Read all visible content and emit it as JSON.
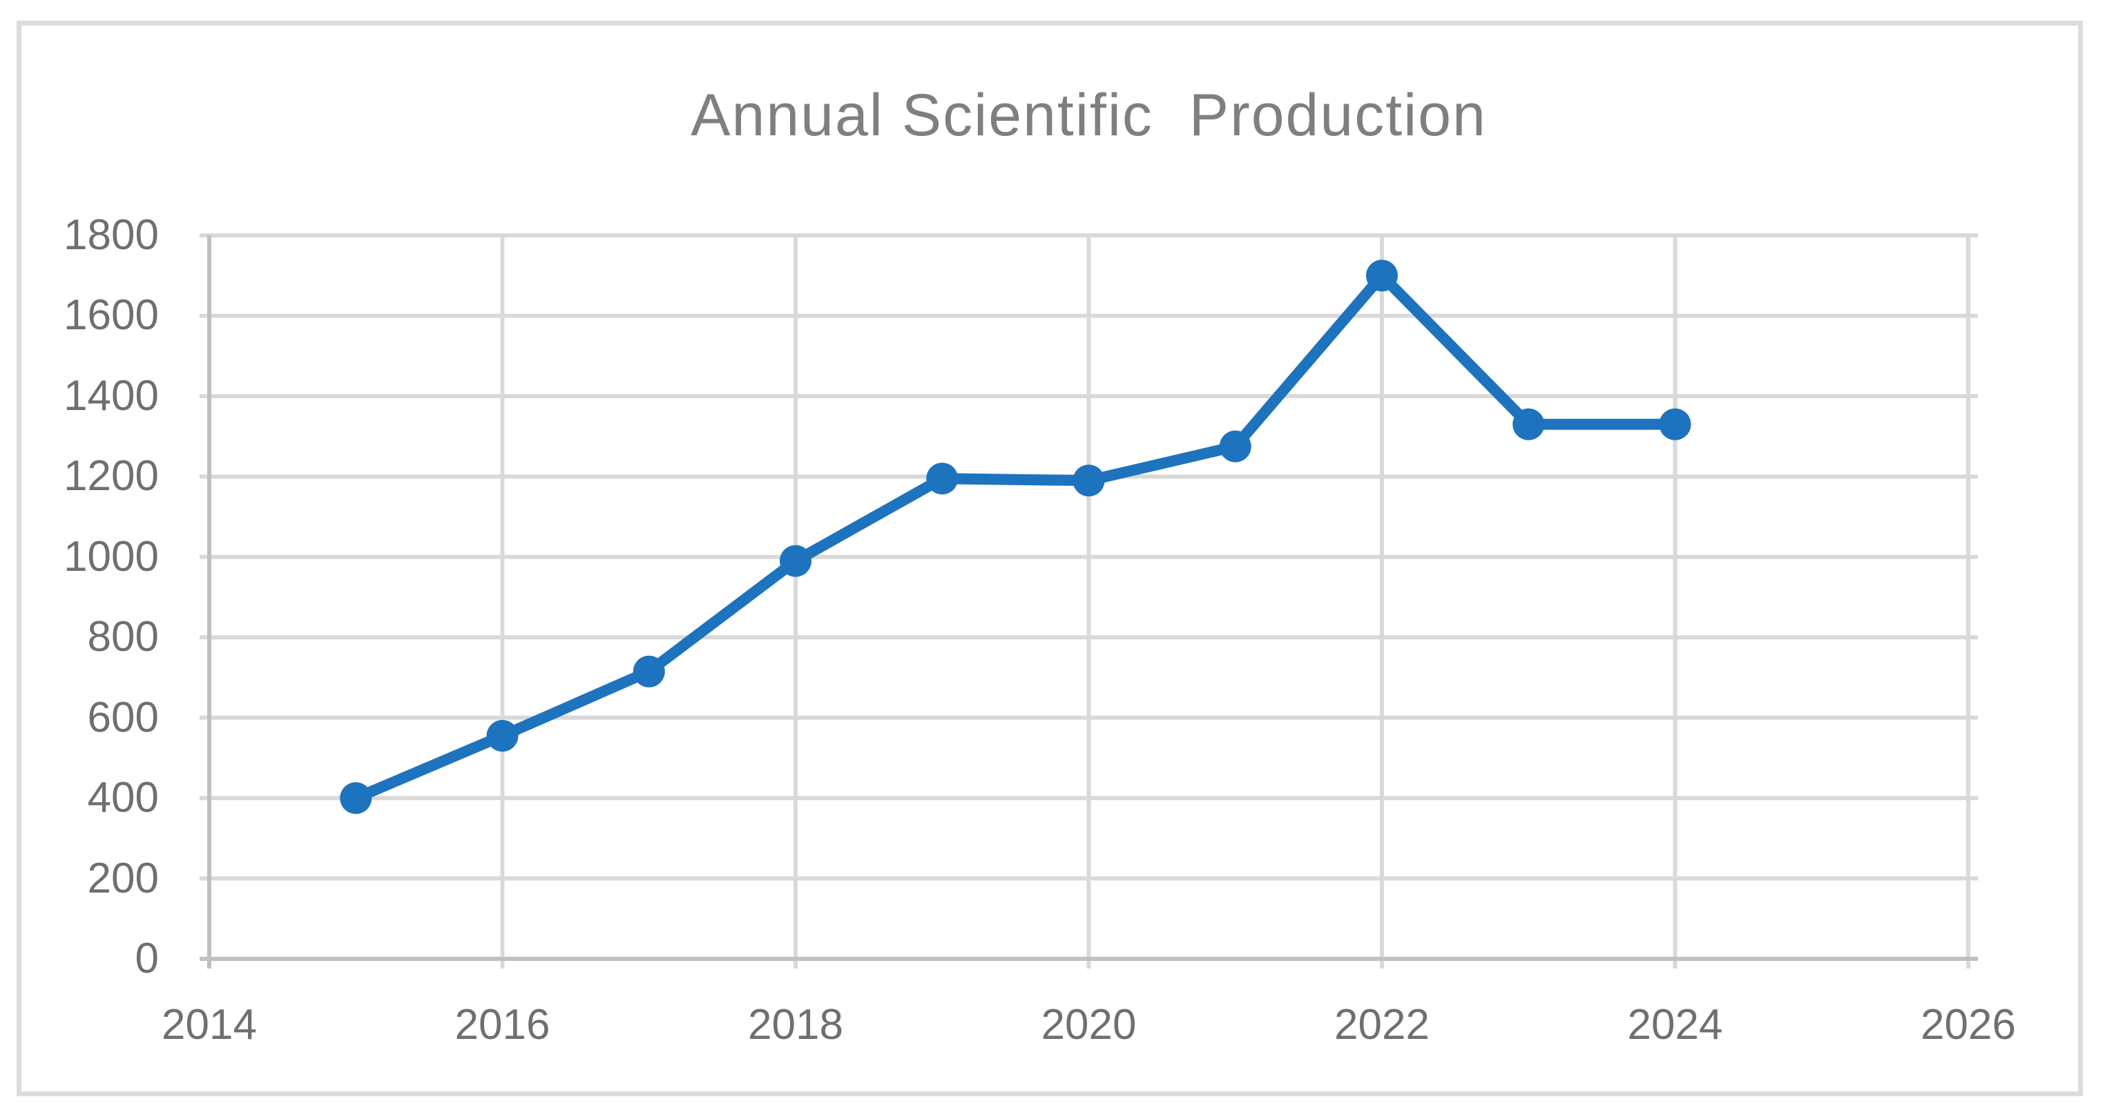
{
  "chart_data": {
    "type": "line",
    "title": "Annual Scientific  Production",
    "x": [
      2015,
      2016,
      2017,
      2018,
      2019,
      2020,
      2021,
      2022,
      2023,
      2024
    ],
    "values": [
      400,
      555,
      715,
      990,
      1195,
      1190,
      1275,
      1700,
      1330,
      1330
    ],
    "xlim": [
      2014,
      2026
    ],
    "ylim": [
      0,
      1800
    ],
    "x_tick_labels": [
      "2014",
      "2016",
      "2018",
      "2020",
      "2022",
      "2024",
      "2026"
    ],
    "y_tick_labels": [
      "0",
      "200",
      "400",
      "600",
      "800",
      "1000",
      "1200",
      "1400",
      "1600",
      "1800"
    ],
    "grid": true,
    "legend": "none",
    "marker": "circle",
    "colors": {
      "line": "#1e73be",
      "marker": "#1e73be",
      "grid": "#d9d9d9",
      "axis": "#c0c0c0",
      "tick_text": "#6f6f6f",
      "title_text": "#7f7f7f",
      "frame": "#dcdcdc",
      "background": "#ffffff"
    }
  }
}
